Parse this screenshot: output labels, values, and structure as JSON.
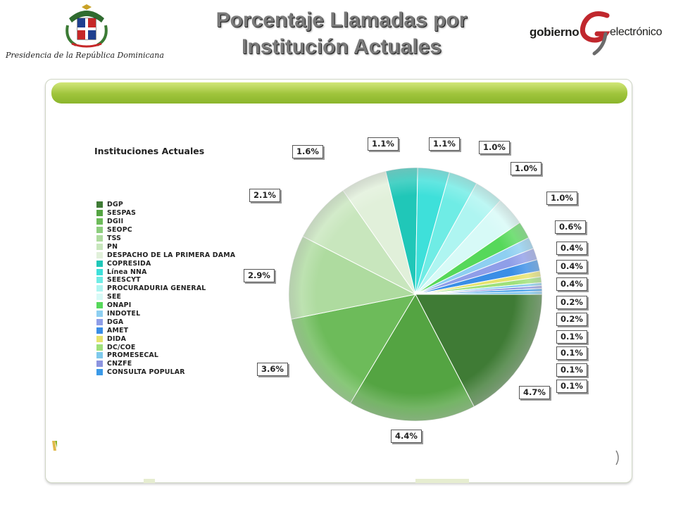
{
  "header": {
    "title_line1": "Porcentaje Llamadas por",
    "title_line2": "Institución Actuales",
    "presidencia": "Presidencia de la República Dominicana",
    "logo_left_text": "gobierno",
    "logo_right_text": "electrónico"
  },
  "colors": {
    "panel_bar": "#9fc43b",
    "title_text": "#7a7a7a"
  },
  "chart_data": {
    "type": "pie",
    "legend_title": "Instituciones Actuales",
    "legend_placement": "left",
    "slices": [
      {
        "name": "DGP",
        "color": "#3f7b35",
        "label": "4.7%",
        "value": 4.7
      },
      {
        "name": "SESPAS",
        "color": "#54a442",
        "label": "4.4%",
        "value": 4.4
      },
      {
        "name": "DGII",
        "color": "#6dbb5a",
        "label": "3.6%",
        "value": 3.6
      },
      {
        "name": "SEOPC",
        "color": "#8ccd7d",
        "label": "",
        "value": 0
      },
      {
        "name": "TSS",
        "color": "#aedb9f",
        "label": "2.9%",
        "value": 2.9
      },
      {
        "name": "PN",
        "color": "#c8e6bd",
        "label": "2.1%",
        "value": 2.1
      },
      {
        "name": "DESPACHO DE LA PRIMERA DAMA",
        "color": "#e1f0da",
        "label": "1.6%",
        "value": 1.6
      },
      {
        "name": "COPRESIDA",
        "color": "#20c7b8",
        "label": "1.1%",
        "value": 1.1
      },
      {
        "name": "Línea NNA",
        "color": "#3ee0da",
        "label": "1.1%",
        "value": 1.1
      },
      {
        "name": "SEESCYT",
        "color": "#6fece5",
        "label": "1.0%",
        "value": 1.0
      },
      {
        "name": "PROCURADURIA GENERAL",
        "color": "#aef5f1",
        "label": "1.0%",
        "value": 1.0
      },
      {
        "name": "SEE",
        "color": "#d7faf7",
        "label": "1.0%",
        "value": 1.0
      },
      {
        "name": "ONAPI",
        "color": "#56d85a",
        "label": "0.6%",
        "value": 0.6
      },
      {
        "name": "INDOTEL",
        "color": "#8ecff1",
        "label": "0.4%",
        "value": 0.4
      },
      {
        "name": "DGA",
        "color": "#8f9ee8",
        "label": "0.4%",
        "value": 0.4
      },
      {
        "name": "AMET",
        "color": "#3a8ee6",
        "label": "0.4%",
        "value": 0.4
      },
      {
        "name": "DIDA",
        "color": "#e6e36d",
        "label": "0.2%",
        "value": 0.2
      },
      {
        "name": "DC/COE",
        "color": "#9fe07a",
        "label": "0.2%",
        "value": 0.2
      },
      {
        "name": "PROMESECAL",
        "color": "#7ec9ec",
        "label": "0.1%",
        "value": 0.1
      },
      {
        "name": "CNZFE",
        "color": "#8c94df",
        "label": "0.1%",
        "value": 0.1
      },
      {
        "name": "CONSULTA POPULAR",
        "color": "#3b9ae8",
        "label": "0.1%",
        "value": 0.1
      },
      {
        "name": "",
        "color": "#6cbdea",
        "label": "0.1%",
        "value": 0.1
      }
    ]
  }
}
